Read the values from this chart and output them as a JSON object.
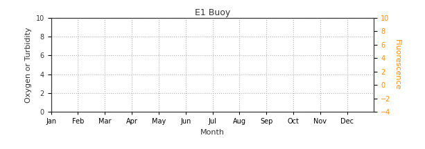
{
  "title": "E1 Buoy",
  "title_color": "#333333",
  "xlabel": "Month",
  "xlabel_color": "#333333",
  "ylabel_left": "Oxygen or Turbidity",
  "ylabel_right": "Fluorescence",
  "ylabel_left_color": "#333333",
  "ylabel_right_color": "#ff8c00",
  "x_tick_labels": [
    "Jan",
    "Feb",
    "Mar",
    "Apr",
    "May",
    "Jun",
    "Jul",
    "Aug",
    "Sep",
    "Oct",
    "Nov",
    "Dec"
  ],
  "ylim_left": [
    0,
    10
  ],
  "ylim_right": [
    -4,
    10
  ],
  "yticks_left": [
    0,
    2,
    4,
    6,
    8,
    10
  ],
  "yticks_right": [
    -4,
    -2,
    0,
    2,
    4,
    6,
    8,
    10
  ],
  "grid_color": "#b0b0b0",
  "grid_style": "dotted",
  "bg_color": "#ffffff",
  "figsize": [
    6.13,
    2.16
  ],
  "dpi": 100
}
